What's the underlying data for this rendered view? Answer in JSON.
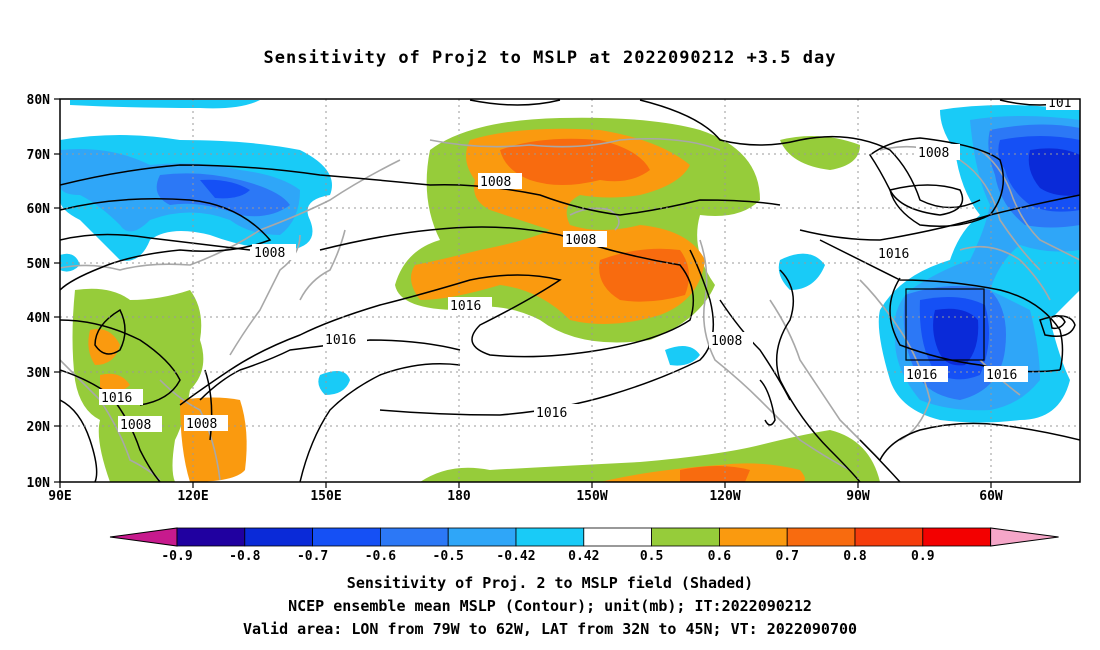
{
  "title": "Sensitivity of Proj2 to MSLP at 2022090212 +3.5 day",
  "map": {
    "lat_labels": [
      "80N",
      "70N",
      "60N",
      "50N",
      "40N",
      "30N",
      "20N",
      "10N"
    ],
    "lon_labels": [
      "90E",
      "120E",
      "150E",
      "180",
      "150W",
      "120W",
      "90W",
      "60W"
    ],
    "contour_labels": [
      "1008",
      "1008",
      "1008",
      "1008",
      "1008",
      "1008",
      "1008",
      "1016",
      "1016",
      "1016",
      "1016",
      "1016",
      "1016",
      "1016",
      "101"
    ],
    "valid_box": {
      "lon_from": "79W",
      "lon_to": "62W",
      "lat_from": "32N",
      "lat_to": "45N"
    }
  },
  "colorbar": {
    "labels": [
      "-0.9",
      "-0.8",
      "-0.7",
      "-0.6",
      "-0.5",
      "-0.42",
      "0.42",
      "0.5",
      "0.6",
      "0.7",
      "0.8",
      "0.9"
    ],
    "colors": [
      "#2000a0",
      "#0a2ad8",
      "#1550f5",
      "#2c78f6",
      "#2fa6f8",
      "#19cbf7",
      "#ffffff",
      "#96cc3a",
      "#fa9a0f",
      "#f86b0f",
      "#f53d0c",
      "#f30000"
    ],
    "left_triangle_color": "#c71a8d",
    "right_triangle_color": "#f5a6c8"
  },
  "captions": [
    "Sensitivity of Proj. 2 to MSLP field (Shaded)",
    "NCEP ensemble mean MSLP (Contour); unit(mb); IT:2022090212",
    "Valid area: LON from 79W to 62W, LAT from 32N to 45N; VT: 2022090700"
  ]
}
